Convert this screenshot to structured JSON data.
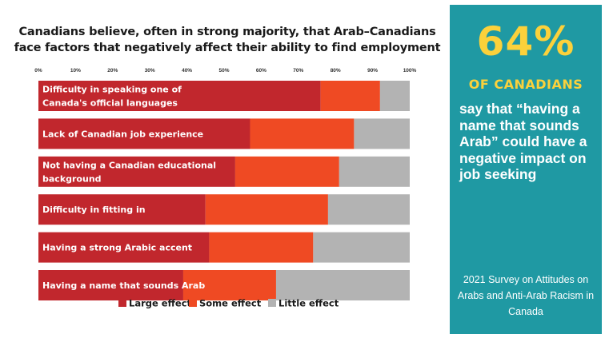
{
  "side_panel": {
    "stat": "64%",
    "subtitle": "OF CANADIANS",
    "quote": "say that “having a name that sounds Arab” could have a negative impact on job seeking",
    "source": "2021 Survey on Attitudes on Arabs and Anti-Arab Racism in Canada",
    "background_color": "#1f99a3",
    "accent_color": "#fbd13b"
  },
  "chart_data": {
    "type": "bar",
    "orientation": "horizontal",
    "stacked": true,
    "title": "Canadians believe, often in strong majority, that Arab–Canadians face factors that negatively affect their ability to find employment",
    "x_ticks": [
      "0%",
      "10%",
      "20%",
      "30%",
      "40%",
      "50%",
      "60%",
      "70%",
      "80%",
      "90%",
      "100%"
    ],
    "xlim": [
      0,
      100
    ],
    "legend_position": "bottom",
    "categories": [
      [
        "Difficulty in speaking one of",
        "Canada's official languages"
      ],
      [
        "Lack of Canadian job experience"
      ],
      [
        "Not having a Canadian educational",
        "background"
      ],
      [
        "Difficulty in fitting in"
      ],
      [
        "Having a strong Arabic accent"
      ],
      [
        "Having a name that sounds Arab"
      ]
    ],
    "series": [
      {
        "name": "Large effect",
        "color": "#c1272d",
        "values": [
          76,
          57,
          53,
          45,
          46,
          39
        ]
      },
      {
        "name": "Some effect",
        "color": "#ef4a23",
        "values": [
          16,
          28,
          28,
          33,
          28,
          25
        ]
      },
      {
        "name": "Little effect",
        "color": "#b3b3b3",
        "values": [
          8,
          15,
          19,
          22,
          26,
          36
        ]
      }
    ]
  }
}
